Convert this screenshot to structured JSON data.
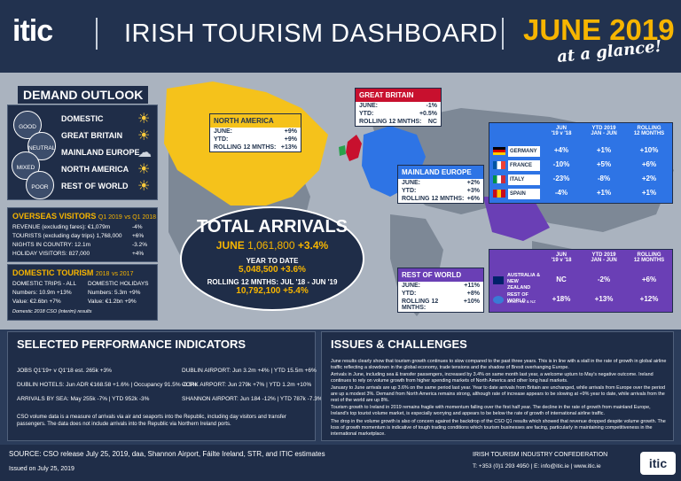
{
  "header": {
    "logo": "itic",
    "title": "IRISH TOURISM DASHBOARD",
    "month": "JUNE 2019",
    "glance": "at a glance!"
  },
  "outlook": {
    "heading": "DEMAND OUTLOOK",
    "rows": [
      "DOMESTIC",
      "GREAT BRITAIN",
      "MAINLAND EUROPE",
      "NORTH AMERICA",
      "REST OF WORLD"
    ],
    "sentiments": [
      "GOOD",
      "NEUTRAL",
      "MIXED",
      "POOR"
    ]
  },
  "markets": {
    "north_america": {
      "title": "NORTH AMERICA",
      "june_label": "JUNE:",
      "june": "+9%",
      "ytd_label": "YTD:",
      "ytd": "+9%",
      "r12_label": "ROLLING 12 MNTHS:",
      "r12": "+13%"
    },
    "great_britain": {
      "title": "GREAT BRITAIN",
      "june_label": "JUNE:",
      "june": "-1%",
      "ytd_label": "YTD:",
      "ytd": "+0.5%",
      "r12_label": "ROLLING 12 MNTHS:",
      "r12": "NC"
    },
    "mainland_europe": {
      "title": "MAINLAND EUROPE",
      "june_label": "JUNE:",
      "june": "+2%",
      "ytd_label": "YTD:",
      "ytd": "+3%",
      "r12_label": "ROLLING 12 MNTHS:",
      "r12": "+6%"
    },
    "rest_of_world": {
      "title": "REST OF WORLD",
      "june_label": "JUNE:",
      "june": "+11%",
      "ytd_label": "YTD:",
      "ytd": "+8%",
      "r12_label": "ROLLING 12 MNTHS:",
      "r12": "+10%"
    }
  },
  "europe_table": {
    "headers": [
      "JUN\n'19 v '18",
      "YTD 2019\nJAN - JUN",
      "ROLLING\n12 MONTHS"
    ],
    "rows": [
      {
        "country": "GERMANY",
        "jun": "+4%",
        "ytd": "+1%",
        "r12": "+10%"
      },
      {
        "country": "FRANCE",
        "jun": "-10%",
        "ytd": "+5%",
        "r12": "+6%"
      },
      {
        "country": "ITALY",
        "jun": "-23%",
        "ytd": "-8%",
        "r12": "+2%"
      },
      {
        "country": "SPAIN",
        "jun": "-4%",
        "ytd": "+1%",
        "r12": "+1%"
      }
    ]
  },
  "row_table": {
    "headers": [
      "JUN\n'19 v '18",
      "YTD 2019\nJAN - JUN",
      "ROLLING\n12 MONTHS"
    ],
    "rows": [
      {
        "country": "AUSTRALIA & NEW ZEALAND",
        "jun": "NC",
        "ytd": "-2%",
        "r12": "+6%"
      },
      {
        "country": "REST OF WORLD",
        "sub": "EXCL. OZ & NZ",
        "jun": "+18%",
        "ytd": "+13%",
        "r12": "+12%"
      }
    ]
  },
  "overseas": {
    "heading": "OVERSEAS VISITORS",
    "period": "Q1 2019",
    "vs": "vs Q1 2018",
    "rows": [
      {
        "label": "REVENUE (excluding fares): €1,079m",
        "val": "-4%"
      },
      {
        "label": "TOURISTS (excluding day trips) 1,768,000",
        "val": "+6%"
      },
      {
        "label": "NIGHTS IN COUNTRY: 12.1m",
        "val": "-3.2%"
      },
      {
        "label": "HOLIDAY VISITORS: 827,000",
        "val": "+4%"
      }
    ]
  },
  "domestic": {
    "heading": "DOMESTIC TOURISM",
    "period": "2018",
    "vs": "vs 2017",
    "col1": "DOMESTIC TRIPS - ALL",
    "col2": "DOMESTIC HOLIDAYS",
    "n1": "Numbers: 10.9m +13%",
    "n2": "Numbers: 5.3m +9%",
    "v1": "Value: €2.6bn +7%",
    "v2": "Value: €1.2bn +9%",
    "note": "Domestic 2018 CSO (interim) results"
  },
  "total": {
    "heading": "TOTAL ARRIVALS",
    "june_label": "JUNE",
    "june": "1,061,800",
    "june_pct": "+3.4%",
    "ytd_label": "YEAR TO DATE",
    "ytd": "5,048,500 +3.6%",
    "r12_label": "ROLLING 12 MNTHS: JUL '18 - JUN '19",
    "r12": "10,792,100 +5.4%"
  },
  "spi": {
    "heading": "SELECTED PERFORMANCE INDICATORS",
    "items": [
      "JOBS Q1'19+ v Q1'18 est. 265k +3%",
      "DUBLIN HOTELS: Jun ADR €168.58 +1.6% | Occupancy 91.5% -0.5%",
      "ARRIVALS BY SEA: May 255k -7% | YTD 952k -3%",
      "DUBLIN AIRPORT: Jun 3.2m +4% | YTD 15.5m +6%",
      "CORK AIRPORT: Jun 279k +7% | YTD 1.2m +10%",
      "SHANNON AIRPORT: Jun 184 -12% | YTD 787k -7.3%"
    ],
    "note": "CSO volume data is a measure of arrivals via air and seaports into the Republic, including day visitors and transfer passengers. The data does not include arrivals into the Republic via Northern Ireland ports."
  },
  "issues": {
    "heading": "ISSUES & CHALLENGES",
    "bullets": [
      "June results clearly show that tourism growth continues to slow compared to the past three years. This is in line with a stall in the rate of growth in global airline traffic reflecting a slowdown in the global economy, trade tensions and the shadow of Brexit overhanging Europe.",
      "Arrivals in June, including sea & transfer passengers, increased by 3.4% on same month last year, a welcome upturn to May's negative outcome. Ireland continues to rely on volume growth from higher spending markets of North America and other long haul markets.",
      "January to June arrivals are up 3.6% on the same period last year. Year to date arrivals from Britain are unchanged, while arrivals from Europe over the period are up a modest 3%. Demand from North America remains strong, although rate of increase appears to be slowing at +9% year to date, while arrivals from the rest of the world are up 8%.",
      "Tourism growth to Ireland in 2019 remains fragile with momentum falling over the first half year. The decline in the rate of growth from mainland Europe, Ireland's top tourist volume market, is especially worrying and appears to be below the rate of growth of international airline traffic.",
      "The drop in the volume growth is also of concern against the backdrop of the CSO Q1 results which showed that revenue dropped despite volume growth. The loss of growth momentum is indicative of tough trading conditions which tourism businesses are facing, particularly in maintaining competitiveness in the international marketplace."
    ]
  },
  "footer": {
    "source": "SOURCE: CSO release July 25, 2019, daa, Shannon Airport, Fáilte Ireland, STR, and ITIC estimates",
    "issued": "Issued on July 25, 2019",
    "org": "IRISH TOURISM INDUSTRY CONFEDERATION",
    "contact": "T: +353 (0)1 293 4950 | E: info@itic.ie | www.itic.ie",
    "logo": "itic"
  },
  "colors": {
    "accent": "#f7b500",
    "na": "#f5c21b",
    "gb": "#c8102e",
    "europe": "#2e74e5",
    "row": "#6a3fb5",
    "navy": "#1f2d48"
  }
}
